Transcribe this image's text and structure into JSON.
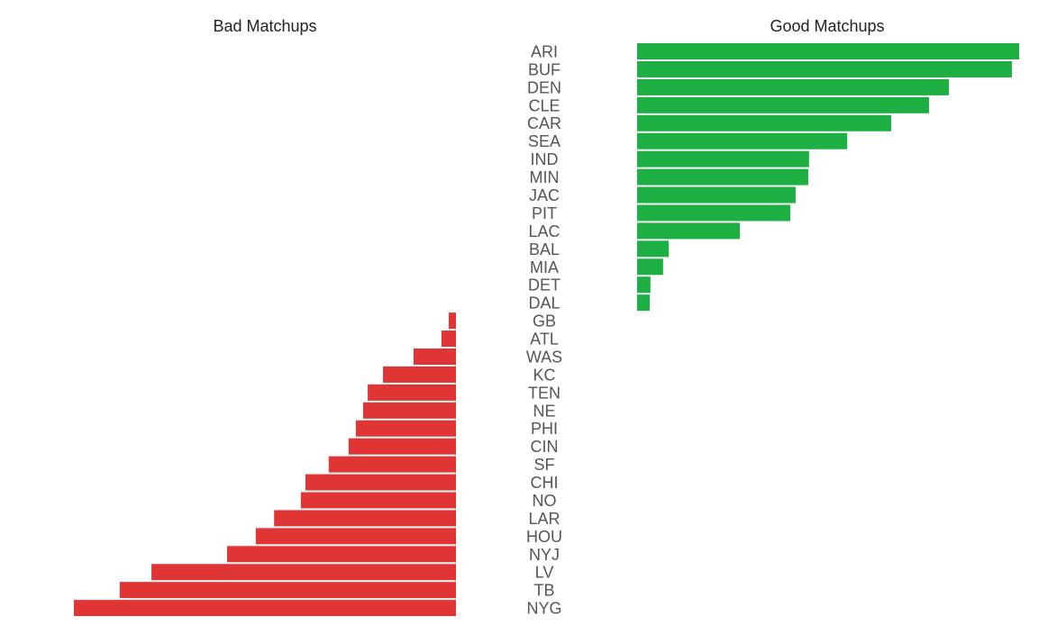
{
  "chart_data": {
    "type": "bar",
    "orientation": "horizontal",
    "layout": "diverging",
    "panels": {
      "bad": {
        "title": "Bad Matchups",
        "color": "#e03535"
      },
      "good": {
        "title": "Good Matchups",
        "color": "#1daf42"
      }
    },
    "teams": [
      {
        "team": "ARI",
        "value": 100.0
      },
      {
        "team": "BUF",
        "value": 98.1
      },
      {
        "team": "DEN",
        "value": 81.6
      },
      {
        "team": "CLE",
        "value": 76.4
      },
      {
        "team": "CAR",
        "value": 66.5
      },
      {
        "team": "SEA",
        "value": 55.0
      },
      {
        "team": "IND",
        "value": 45.0
      },
      {
        "team": "MIN",
        "value": 44.8
      },
      {
        "team": "JAC",
        "value": 41.5
      },
      {
        "team": "PIT",
        "value": 40.1
      },
      {
        "team": "LAC",
        "value": 26.9
      },
      {
        "team": "BAL",
        "value": 8.3
      },
      {
        "team": "MIA",
        "value": 6.8
      },
      {
        "team": "DET",
        "value": 3.5
      },
      {
        "team": "DAL",
        "value": 3.3
      },
      {
        "team": "GB",
        "value": -1.9
      },
      {
        "team": "ATL",
        "value": -3.8
      },
      {
        "team": "WAS",
        "value": -11.1
      },
      {
        "team": "KC",
        "value": -19.1
      },
      {
        "team": "TEN",
        "value": -23.1
      },
      {
        "team": "NE",
        "value": -24.3
      },
      {
        "team": "PHI",
        "value": -26.2
      },
      {
        "team": "CIN",
        "value": -28.1
      },
      {
        "team": "SF",
        "value": -33.3
      },
      {
        "team": "CHI",
        "value": -39.4
      },
      {
        "team": "NO",
        "value": -40.6
      },
      {
        "team": "LAR",
        "value": -47.6
      },
      {
        "team": "HOU",
        "value": -52.4
      },
      {
        "team": "NYJ",
        "value": -59.9
      },
      {
        "team": "LV",
        "value": -79.7
      },
      {
        "team": "TB",
        "value": -88.0
      },
      {
        "team": "NYG",
        "value": -100.0
      }
    ],
    "value_range": [
      -100,
      100
    ],
    "grid": false,
    "axes_visible": false,
    "legend": "none"
  }
}
